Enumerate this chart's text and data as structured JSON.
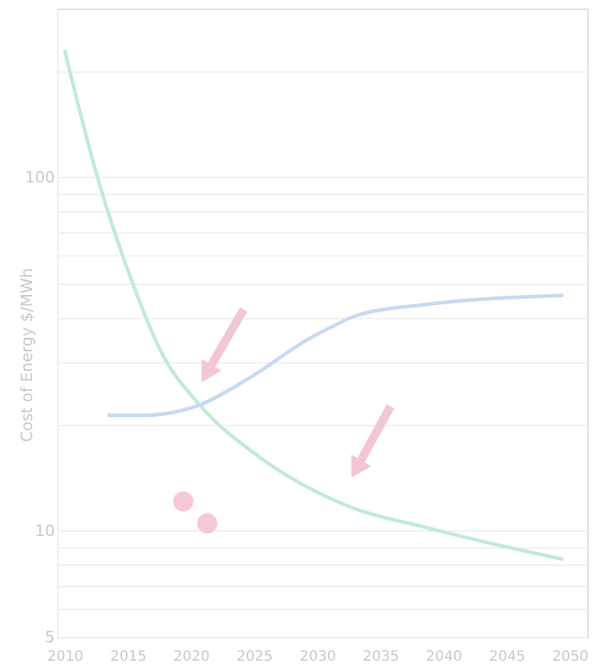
{
  "chart_data": {
    "type": "line",
    "ylabel": "Cost of Energy $/MWh",
    "log": true,
    "grid": "y",
    "line_style": "solid",
    "xlim": [
      2009.4,
      2051.4
    ],
    "xticks": [
      2010,
      2015,
      2020,
      2025,
      2030,
      2035,
      2040,
      2045,
      2050
    ],
    "ylim": [
      5,
      300
    ],
    "yticks": [
      5,
      {
        "value": 6,
        "label": null
      },
      {
        "value": 7,
        "label": null
      },
      {
        "value": 8,
        "label": null
      },
      {
        "value": 9,
        "label": null
      },
      10,
      {
        "value": 20,
        "label": null
      },
      {
        "value": 30,
        "label": null
      },
      {
        "value": 40,
        "label": null
      },
      {
        "value": 50,
        "label": null
      },
      {
        "value": 60,
        "label": null
      },
      {
        "value": 70,
        "label": null
      },
      {
        "value": 80,
        "label": null
      },
      {
        "value": 90,
        "label": null
      },
      100,
      {
        "value": 200,
        "label": null
      }
    ],
    "series": [
      {
        "color": "#c3e8dd",
        "x": [
          2010,
          2012.6,
          2015.4,
          2017.7,
          2020.7,
          2025.4,
          2032.3,
          2038.7,
          2043,
          2049.5
        ],
        "values": [
          229,
          100,
          50,
          31.8,
          22.7,
          16.2,
          11.8,
          10.2,
          9.35,
          8.3
        ]
      },
      {
        "color": "#c8d9f0",
        "x": [
          2013.4,
          2016.2,
          2020.7,
          2024.6,
          2029.4,
          2031.2,
          2033,
          2038.7,
          2049.5
        ],
        "values": [
          21.2,
          21.2,
          22.7,
          27,
          35,
          37.8,
          40.5,
          43.7,
          46.3
        ]
      },
      {
        "type": "scatter",
        "marker": "circle",
        "color": "#f5c8d9",
        "x": [
          2019.4,
          2021.3
        ],
        "values": [
          12.1,
          10.5
        ]
      }
    ]
  }
}
